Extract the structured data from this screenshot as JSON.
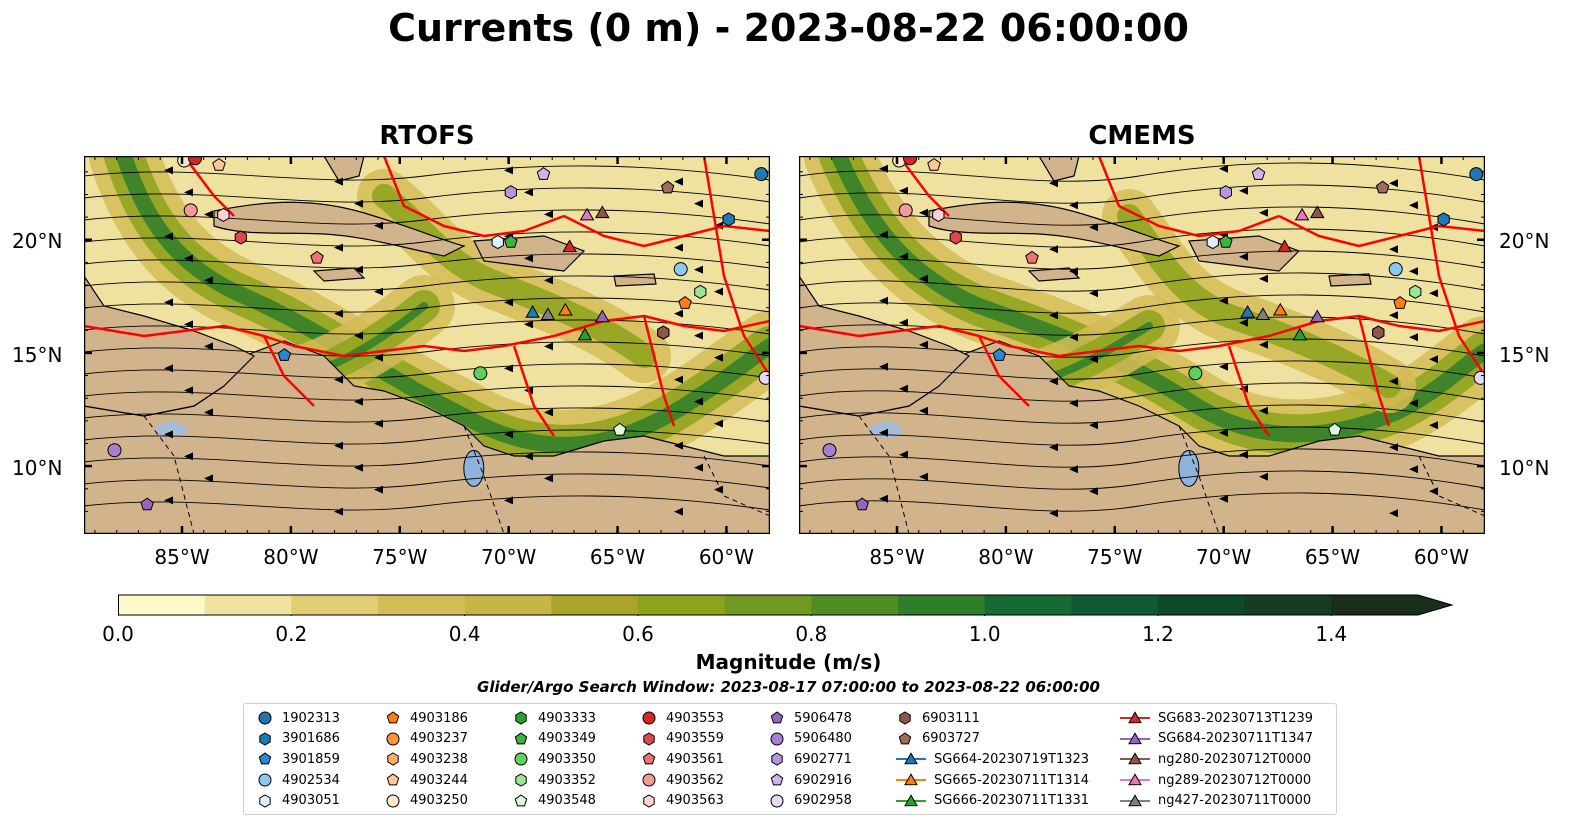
{
  "title": "Currents (0 m) - 2023-08-22 06:00:00",
  "panels": [
    {
      "title": "RTOFS"
    },
    {
      "title": "CMEMS"
    }
  ],
  "axes": {
    "lon_ticks": [
      "85°W",
      "80°W",
      "75°W",
      "70°W",
      "65°W",
      "60°W"
    ],
    "lat_ticks": [
      "20°N",
      "15°N",
      "10°N"
    ],
    "lon_range": [
      -89.5,
      -58.0
    ],
    "lat_range": [
      7.0,
      23.7
    ]
  },
  "colorbar": {
    "label": "Magnitude (m/s)",
    "ticks": [
      "0.0",
      "0.2",
      "0.4",
      "0.6",
      "0.8",
      "1.0",
      "1.2",
      "1.4"
    ],
    "range": [
      0.0,
      1.5
    ],
    "extend": "max",
    "colors": [
      "#fdf8c8",
      "#f0e39c",
      "#e2cd73",
      "#d4bc57",
      "#c8b548",
      "#a8a52a",
      "#8da31c",
      "#6f9a1f",
      "#4f8e23",
      "#2f7e2a",
      "#166b32",
      "#0f5a30",
      "#0e4a2a",
      "#163d24",
      "#1a2e1c"
    ]
  },
  "search_window": "Glider/Argo Search Window: 2023-08-17 07:00:00 to 2023-08-22 06:00:00",
  "legend": {
    "columns": [
      [
        {
          "label": "1902313",
          "marker": "circle",
          "color": "#1f77b4"
        },
        {
          "label": "3901686",
          "marker": "hexagon",
          "color": "#1f77b4"
        },
        {
          "label": "3901859",
          "marker": "pentagon",
          "color": "#2b87d0"
        },
        {
          "label": "4902534",
          "marker": "circle",
          "color": "#8ec8f0"
        },
        {
          "label": "4903051",
          "marker": "hexagon",
          "color": "#dff0fb"
        }
      ],
      [
        {
          "label": "4903186",
          "marker": "pentagon",
          "color": "#ff7f0e"
        },
        {
          "label": "4903237",
          "marker": "circle",
          "color": "#ff9438"
        },
        {
          "label": "4903238",
          "marker": "hexagon",
          "color": "#ffae65"
        },
        {
          "label": "4903244",
          "marker": "pentagon",
          "color": "#ffc89b"
        },
        {
          "label": "4903250",
          "marker": "circle",
          "color": "#ffe6cc"
        }
      ],
      [
        {
          "label": "4903333",
          "marker": "hexagon",
          "color": "#2ca02c"
        },
        {
          "label": "4903349",
          "marker": "pentagon",
          "color": "#3cb43c"
        },
        {
          "label": "4903350",
          "marker": "circle",
          "color": "#5fcf5f"
        },
        {
          "label": "4903352",
          "marker": "hexagon",
          "color": "#98e698"
        },
        {
          "label": "4903548",
          "marker": "pentagon",
          "color": "#dff7df"
        }
      ],
      [
        {
          "label": "4903553",
          "marker": "circle",
          "color": "#d62728"
        },
        {
          "label": "4903559",
          "marker": "hexagon",
          "color": "#e04747"
        },
        {
          "label": "4903561",
          "marker": "pentagon",
          "color": "#ec7373"
        },
        {
          "label": "4903562",
          "marker": "circle",
          "color": "#f59a9a"
        },
        {
          "label": "4903563",
          "marker": "hexagon",
          "color": "#fcd2d2"
        }
      ],
      [
        {
          "label": "5906478",
          "marker": "pentagon",
          "color": "#9467bd"
        },
        {
          "label": "5906480",
          "marker": "circle",
          "color": "#a57fd0"
        },
        {
          "label": "6902771",
          "marker": "hexagon",
          "color": "#b594e0"
        },
        {
          "label": "6902916",
          "marker": "pentagon",
          "color": "#cdb6ee"
        },
        {
          "label": "6902958",
          "marker": "circle",
          "color": "#e6d8f7"
        }
      ],
      [
        {
          "label": "6903111",
          "marker": "hexagon",
          "color": "#8c564b"
        },
        {
          "label": "6903727",
          "marker": "pentagon",
          "color": "#a06a5c"
        },
        {
          "label": "SG664-20230719T1323",
          "marker": "triangle-line",
          "color": "#1f77b4"
        },
        {
          "label": "SG665-20230711T1314",
          "marker": "triangle-line",
          "color": "#ff7f0e"
        },
        {
          "label": "SG666-20230711T1331",
          "marker": "triangle-line",
          "color": "#2ca02c"
        }
      ],
      [
        {
          "label": "SG683-20230713T1239",
          "marker": "triangle-line",
          "color": "#d62728"
        },
        {
          "label": "SG684-20230711T1347",
          "marker": "triangle-line",
          "color": "#9467bd"
        },
        {
          "label": "ng280-20230712T0000",
          "marker": "triangle-line",
          "color": "#8c564b"
        },
        {
          "label": "ng289-20230712T0000",
          "marker": "triangle-line",
          "color": "#e377c2"
        },
        {
          "label": "ng427-20230711T0000",
          "marker": "triangle-line",
          "color": "#7f7f7f"
        }
      ]
    ]
  },
  "markers": [
    {
      "id": "1902313",
      "lon": -58.4,
      "lat": 22.9
    },
    {
      "id": "3901686",
      "lon": -59.9,
      "lat": 20.9
    },
    {
      "id": "3901859",
      "lon": -80.3,
      "lat": 14.9
    },
    {
      "id": "4902534",
      "lon": -62.1,
      "lat": 18.7
    },
    {
      "id": "4903051",
      "lon": -70.5,
      "lat": 19.9
    },
    {
      "id": "4903186",
      "lon": -61.9,
      "lat": 17.2
    },
    {
      "id": "4903250",
      "lon": -84.9,
      "lat": 23.5
    },
    {
      "id": "4903244",
      "lon": -83.3,
      "lat": 23.3
    },
    {
      "id": "4903333",
      "lon": -62.9,
      "lat": 15.9
    },
    {
      "id": "4903349",
      "lon": -69.9,
      "lat": 19.9
    },
    {
      "id": "4903350",
      "lon": -71.3,
      "lat": 14.1
    },
    {
      "id": "4903352",
      "lon": -61.2,
      "lat": 17.7
    },
    {
      "id": "4903548",
      "lon": -64.9,
      "lat": 11.6
    },
    {
      "id": "4903553",
      "lon": -84.4,
      "lat": 23.6
    },
    {
      "id": "4903559",
      "lon": -82.3,
      "lat": 20.1
    },
    {
      "id": "4903561",
      "lon": -78.8,
      "lat": 19.2
    },
    {
      "id": "4903562",
      "lon": -84.6,
      "lat": 21.3
    },
    {
      "id": "4903563",
      "lon": -83.1,
      "lat": 21.1
    },
    {
      "id": "5906478",
      "lon": -86.6,
      "lat": 8.3
    },
    {
      "id": "5906480",
      "lon": -88.1,
      "lat": 10.7
    },
    {
      "id": "6902771",
      "lon": -69.9,
      "lat": 22.1
    },
    {
      "id": "6902916",
      "lon": -68.4,
      "lat": 22.9
    },
    {
      "id": "6902958",
      "lon": -58.2,
      "lat": 13.9
    },
    {
      "id": "6903111",
      "lon": -62.9,
      "lat": 15.9
    },
    {
      "id": "6903727",
      "lon": -62.7,
      "lat": 22.3
    },
    {
      "id": "SG664-20230719T1323",
      "lon": -68.9,
      "lat": 16.8
    },
    {
      "id": "SG665-20230711T1314",
      "lon": -67.4,
      "lat": 16.9
    },
    {
      "id": "SG666-20230711T1331",
      "lon": -66.5,
      "lat": 15.8
    },
    {
      "id": "SG683-20230713T1239",
      "lon": -67.2,
      "lat": 19.7
    },
    {
      "id": "SG684-20230711T1347",
      "lon": -65.7,
      "lat": 16.6
    },
    {
      "id": "ng280-20230712T0000",
      "lon": -65.7,
      "lat": 21.2
    },
    {
      "id": "ng289-20230712T0000",
      "lon": -66.4,
      "lat": 21.1
    },
    {
      "id": "ng427-20230711T0000",
      "lon": -68.2,
      "lat": 16.7
    }
  ]
}
